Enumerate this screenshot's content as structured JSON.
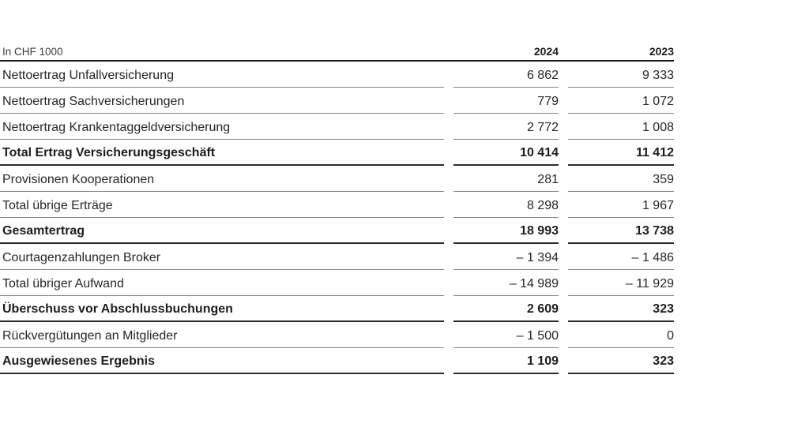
{
  "document": {
    "unit_label": "In CHF 1000",
    "columns": {
      "y2024": "2024",
      "y2023": "2023"
    },
    "rows": [
      {
        "label": "Nettoertrag Unfallversicherung",
        "v2024": "6 862",
        "v2023": "9 333",
        "total": false
      },
      {
        "label": "Nettoertrag Sachversicherungen",
        "v2024": "779",
        "v2023": "1 072",
        "total": false
      },
      {
        "label": "Nettoertrag Krankentaggeldversicherung",
        "v2024": "2 772",
        "v2023": "1 008",
        "total": false
      },
      {
        "label": "Total Ertrag Versicherungsgeschäft",
        "v2024": "10 414",
        "v2023": "11 412",
        "total": true
      },
      {
        "label": "Provisionen Kooperationen",
        "v2024": "281",
        "v2023": "359",
        "total": false
      },
      {
        "label": "Total übrige Erträge",
        "v2024": "8 298",
        "v2023": "1 967",
        "total": false
      },
      {
        "label": "Gesamtertrag",
        "v2024": "18 993",
        "v2023": "13 738",
        "total": true
      },
      {
        "label": "Courtagenzahlungen Broker",
        "v2024": "– 1 394",
        "v2023": "– 1 486",
        "total": false
      },
      {
        "label": "Total übriger Aufwand",
        "v2024": "– 14 989",
        "v2023": "– 11 929",
        "total": false
      },
      {
        "label": "Überschuss vor Abschlussbuchungen",
        "v2024": "2 609",
        "v2023": "323",
        "total": true
      },
      {
        "label": "Rückvergütungen an Mitglieder",
        "v2024": "– 1 500",
        "v2023": "0",
        "total": false
      },
      {
        "label": "Ausgewiesenes Ergebnis",
        "v2024": "1 109",
        "v2023": "323",
        "total": true
      }
    ],
    "colors": {
      "background": "#ffffff",
      "text": "#1d1d1b",
      "unit_text": "#3c3c3b",
      "rule_thin": "#858585",
      "rule_thick": "#1d1d1b"
    }
  }
}
